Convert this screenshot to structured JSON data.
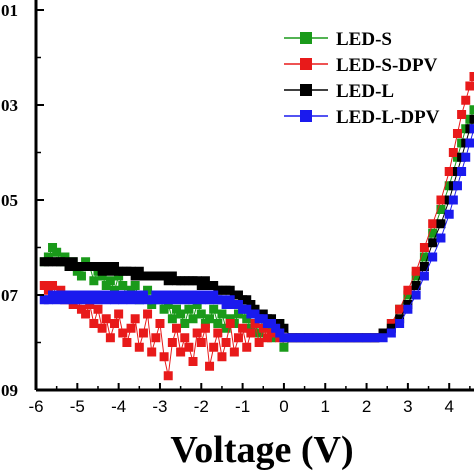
{
  "chart_data": {
    "type": "scatter",
    "xlabel": "Voltage (V)",
    "ylabel": "",
    "xlim": [
      -6,
      4.6
    ],
    "ylim_log10": [
      -9,
      -1
    ],
    "y_scale": "log",
    "x_ticks": [
      "-6",
      "-5",
      "-4",
      "-3",
      "-2",
      "-1",
      "0",
      "1",
      "2",
      "3",
      "4"
    ],
    "y_tick_labels": [
      "01",
      "03",
      "05",
      "07",
      "09"
    ],
    "legend_position": "top-right",
    "series": [
      {
        "name": "LED-S",
        "color": "#1a9a1a",
        "marker": "square",
        "x": [
          -5.8,
          -5.7,
          -5.6,
          -5.5,
          -5.4,
          -5.3,
          -5.2,
          -5.1,
          -5.0,
          -4.9,
          -4.8,
          -4.7,
          -4.6,
          -4.5,
          -4.4,
          -4.3,
          -4.2,
          -4.1,
          -4.0,
          -3.9,
          -3.8,
          -3.7,
          -3.6,
          -3.5,
          -3.4,
          -3.3,
          -3.2,
          -3.1,
          -3.0,
          -2.9,
          -2.8,
          -2.7,
          -2.6,
          -2.5,
          -2.4,
          -2.3,
          -2.2,
          -2.1,
          -2.0,
          -1.9,
          -1.8,
          -1.7,
          -1.6,
          -1.5,
          -1.4,
          -1.3,
          -1.2,
          -1.1,
          -1.0,
          -0.9,
          -0.8,
          -0.7,
          -0.6,
          -0.5,
          -0.4,
          -0.3,
          -0.2,
          -0.1,
          0.0,
          0.2,
          0.4,
          0.6,
          0.8,
          1.0,
          1.2,
          1.4,
          1.6,
          1.8,
          2.0,
          2.2,
          2.4,
          2.6,
          2.8,
          3.0,
          3.2,
          3.4,
          3.6,
          3.8,
          4.0,
          4.1,
          4.2,
          4.3,
          4.4,
          4.5,
          4.6
        ],
        "y_log10": [
          -6.3,
          -6.2,
          -6.0,
          -6.1,
          -6.3,
          -6.2,
          -6.4,
          -6.3,
          -6.5,
          -6.6,
          -6.3,
          -6.4,
          -6.7,
          -6.5,
          -6.6,
          -6.8,
          -6.7,
          -6.9,
          -6.6,
          -6.8,
          -7.0,
          -6.9,
          -6.8,
          -7.1,
          -7.0,
          -6.9,
          -7.2,
          -7.0,
          -7.1,
          -7.3,
          -7.2,
          -7.5,
          -7.3,
          -7.4,
          -7.6,
          -7.3,
          -7.5,
          -7.2,
          -7.4,
          -7.6,
          -7.5,
          -7.3,
          -7.6,
          -7.4,
          -7.7,
          -7.5,
          -7.6,
          -7.4,
          -7.3,
          -7.5,
          -7.7,
          -7.6,
          -7.8,
          -7.5,
          -7.7,
          -7.9,
          -7.8,
          -7.6,
          -8.1,
          -7.9,
          -7.9,
          -7.9,
          -7.9,
          -7.9,
          -7.9,
          -7.9,
          -7.9,
          -7.9,
          -7.9,
          -7.9,
          -7.8,
          -7.6,
          -7.3,
          -7.0,
          -6.6,
          -6.2,
          -5.7,
          -5.2,
          -4.7,
          -4.4,
          -4.1,
          -3.8,
          -3.5,
          -3.3,
          -3.1
        ]
      },
      {
        "name": "LED-S-DPV",
        "color": "#e81a1a",
        "marker": "square",
        "x": [
          -5.8,
          -5.7,
          -5.6,
          -5.5,
          -5.4,
          -5.3,
          -5.2,
          -5.1,
          -5.0,
          -4.9,
          -4.8,
          -4.7,
          -4.6,
          -4.5,
          -4.4,
          -4.3,
          -4.2,
          -4.1,
          -4.0,
          -3.9,
          -3.8,
          -3.7,
          -3.6,
          -3.5,
          -3.4,
          -3.3,
          -3.2,
          -3.1,
          -3.0,
          -2.9,
          -2.8,
          -2.7,
          -2.6,
          -2.5,
          -2.4,
          -2.3,
          -2.2,
          -2.1,
          -2.0,
          -1.9,
          -1.8,
          -1.7,
          -1.6,
          -1.5,
          -1.4,
          -1.3,
          -1.2,
          -1.1,
          -1.0,
          -0.9,
          -0.8,
          -0.7,
          -0.6,
          -0.5,
          -0.4,
          -0.3,
          -0.2,
          -0.1,
          0.0,
          0.2,
          0.4,
          0.6,
          0.8,
          1.0,
          1.2,
          1.4,
          1.6,
          1.8,
          2.0,
          2.2,
          2.4,
          2.6,
          2.8,
          3.0,
          3.2,
          3.4,
          3.6,
          3.8,
          4.0,
          4.1,
          4.2,
          4.3,
          4.4,
          4.5,
          4.6
        ],
        "y_log10": [
          -6.8,
          -6.9,
          -6.8,
          -7.0,
          -6.9,
          -7.1,
          -7.0,
          -7.2,
          -7.1,
          -7.3,
          -7.4,
          -7.2,
          -7.6,
          -7.3,
          -7.7,
          -7.5,
          -7.9,
          -7.6,
          -7.4,
          -7.8,
          -8.0,
          -7.7,
          -7.5,
          -8.1,
          -7.8,
          -7.4,
          -8.2,
          -7.9,
          -7.6,
          -8.3,
          -8.7,
          -8.0,
          -7.7,
          -8.2,
          -7.9,
          -8.1,
          -8.4,
          -7.8,
          -8.0,
          -7.7,
          -8.5,
          -8.1,
          -7.8,
          -8.3,
          -8.0,
          -7.6,
          -8.2,
          -7.9,
          -7.7,
          -8.1,
          -7.8,
          -7.6,
          -8.0,
          -7.7,
          -7.9,
          -7.8,
          -7.7,
          -7.9,
          -7.9,
          -7.9,
          -7.9,
          -7.9,
          -7.9,
          -7.9,
          -7.9,
          -7.9,
          -7.9,
          -7.9,
          -7.9,
          -7.9,
          -7.8,
          -7.6,
          -7.3,
          -6.9,
          -6.5,
          -6.0,
          -5.5,
          -5.0,
          -4.4,
          -4.0,
          -3.6,
          -3.2,
          -2.9,
          -2.6,
          -2.4
        ]
      },
      {
        "name": "LED-L",
        "color": "#000000",
        "marker": "square",
        "x": [
          -5.8,
          -5.7,
          -5.6,
          -5.5,
          -5.4,
          -5.3,
          -5.2,
          -5.1,
          -5.0,
          -4.9,
          -4.8,
          -4.7,
          -4.6,
          -4.5,
          -4.4,
          -4.3,
          -4.2,
          -4.1,
          -4.0,
          -3.9,
          -3.8,
          -3.7,
          -3.6,
          -3.5,
          -3.4,
          -3.3,
          -3.2,
          -3.1,
          -3.0,
          -2.9,
          -2.8,
          -2.7,
          -2.6,
          -2.5,
          -2.4,
          -2.3,
          -2.2,
          -2.1,
          -2.0,
          -1.9,
          -1.8,
          -1.7,
          -1.6,
          -1.5,
          -1.4,
          -1.3,
          -1.2,
          -1.1,
          -1.0,
          -0.9,
          -0.8,
          -0.7,
          -0.6,
          -0.5,
          -0.4,
          -0.3,
          -0.2,
          -0.1,
          0.0,
          0.2,
          0.4,
          0.6,
          0.8,
          1.0,
          1.2,
          1.4,
          1.6,
          1.8,
          2.0,
          2.2,
          2.4,
          2.6,
          2.8,
          3.0,
          3.2,
          3.4,
          3.6,
          3.8,
          4.0,
          4.1,
          4.2,
          4.3,
          4.4,
          4.5,
          4.6
        ],
        "y_log10": [
          -6.3,
          -6.3,
          -6.3,
          -6.3,
          -6.3,
          -6.3,
          -6.4,
          -6.3,
          -6.4,
          -6.4,
          -6.4,
          -6.4,
          -6.4,
          -6.4,
          -6.5,
          -6.4,
          -6.5,
          -6.4,
          -6.5,
          -6.5,
          -6.5,
          -6.5,
          -6.6,
          -6.5,
          -6.6,
          -6.6,
          -6.6,
          -6.6,
          -6.6,
          -6.6,
          -6.7,
          -6.6,
          -6.7,
          -6.7,
          -6.7,
          -6.7,
          -6.7,
          -6.7,
          -6.8,
          -6.7,
          -6.8,
          -6.8,
          -6.9,
          -6.9,
          -6.9,
          -6.9,
          -7.0,
          -7.0,
          -7.1,
          -7.1,
          -7.2,
          -7.3,
          -7.4,
          -7.4,
          -7.5,
          -7.5,
          -7.6,
          -7.6,
          -7.7,
          -7.9,
          -7.9,
          -7.9,
          -7.9,
          -7.9,
          -7.9,
          -7.9,
          -7.9,
          -7.9,
          -7.9,
          -7.9,
          -7.8,
          -7.7,
          -7.5,
          -7.2,
          -6.8,
          -6.4,
          -5.9,
          -5.5,
          -5.0,
          -4.7,
          -4.4,
          -4.1,
          -3.8,
          -3.5,
          -3.3
        ]
      },
      {
        "name": "LED-L-DPV",
        "color": "#1a1aee",
        "marker": "square",
        "x": [
          -5.8,
          -5.7,
          -5.6,
          -5.5,
          -5.4,
          -5.3,
          -5.2,
          -5.1,
          -5.0,
          -4.9,
          -4.8,
          -4.7,
          -4.6,
          -4.5,
          -4.4,
          -4.3,
          -4.2,
          -4.1,
          -4.0,
          -3.9,
          -3.8,
          -3.7,
          -3.6,
          -3.5,
          -3.4,
          -3.3,
          -3.2,
          -3.1,
          -3.0,
          -2.9,
          -2.8,
          -2.7,
          -2.6,
          -2.5,
          -2.4,
          -2.3,
          -2.2,
          -2.1,
          -2.0,
          -1.9,
          -1.8,
          -1.7,
          -1.6,
          -1.5,
          -1.4,
          -1.3,
          -1.2,
          -1.1,
          -1.0,
          -0.9,
          -0.8,
          -0.7,
          -0.6,
          -0.5,
          -0.4,
          -0.3,
          -0.2,
          -0.1,
          0.0,
          0.2,
          0.4,
          0.6,
          0.8,
          1.0,
          1.2,
          1.4,
          1.6,
          1.8,
          2.0,
          2.2,
          2.4,
          2.6,
          2.8,
          3.0,
          3.2,
          3.4,
          3.6,
          3.8,
          4.0,
          4.1,
          4.2,
          4.3,
          4.4,
          4.5,
          4.6
        ],
        "y_log10": [
          -7.1,
          -7.1,
          -7.0,
          -7.1,
          -7.0,
          -7.1,
          -7.0,
          -7.1,
          -7.0,
          -7.1,
          -7.0,
          -7.1,
          -7.0,
          -7.1,
          -7.0,
          -7.1,
          -7.0,
          -7.1,
          -7.0,
          -7.1,
          -7.0,
          -7.1,
          -7.0,
          -7.1,
          -7.0,
          -7.1,
          -7.1,
          -7.0,
          -7.1,
          -7.0,
          -7.1,
          -7.0,
          -7.1,
          -7.0,
          -7.1,
          -7.0,
          -7.1,
          -7.0,
          -7.1,
          -7.0,
          -7.1,
          -7.0,
          -7.1,
          -7.1,
          -7.2,
          -7.1,
          -7.2,
          -7.2,
          -7.3,
          -7.3,
          -7.4,
          -7.4,
          -7.5,
          -7.5,
          -7.6,
          -7.6,
          -7.7,
          -7.8,
          -7.9,
          -7.9,
          -7.9,
          -7.9,
          -7.9,
          -7.9,
          -7.9,
          -7.9,
          -7.9,
          -7.9,
          -7.9,
          -7.9,
          -7.9,
          -7.8,
          -7.6,
          -7.3,
          -7.0,
          -6.6,
          -6.2,
          -5.8,
          -5.3,
          -5.0,
          -4.7,
          -4.4,
          -4.1,
          -3.8,
          -3.5
        ]
      }
    ]
  }
}
